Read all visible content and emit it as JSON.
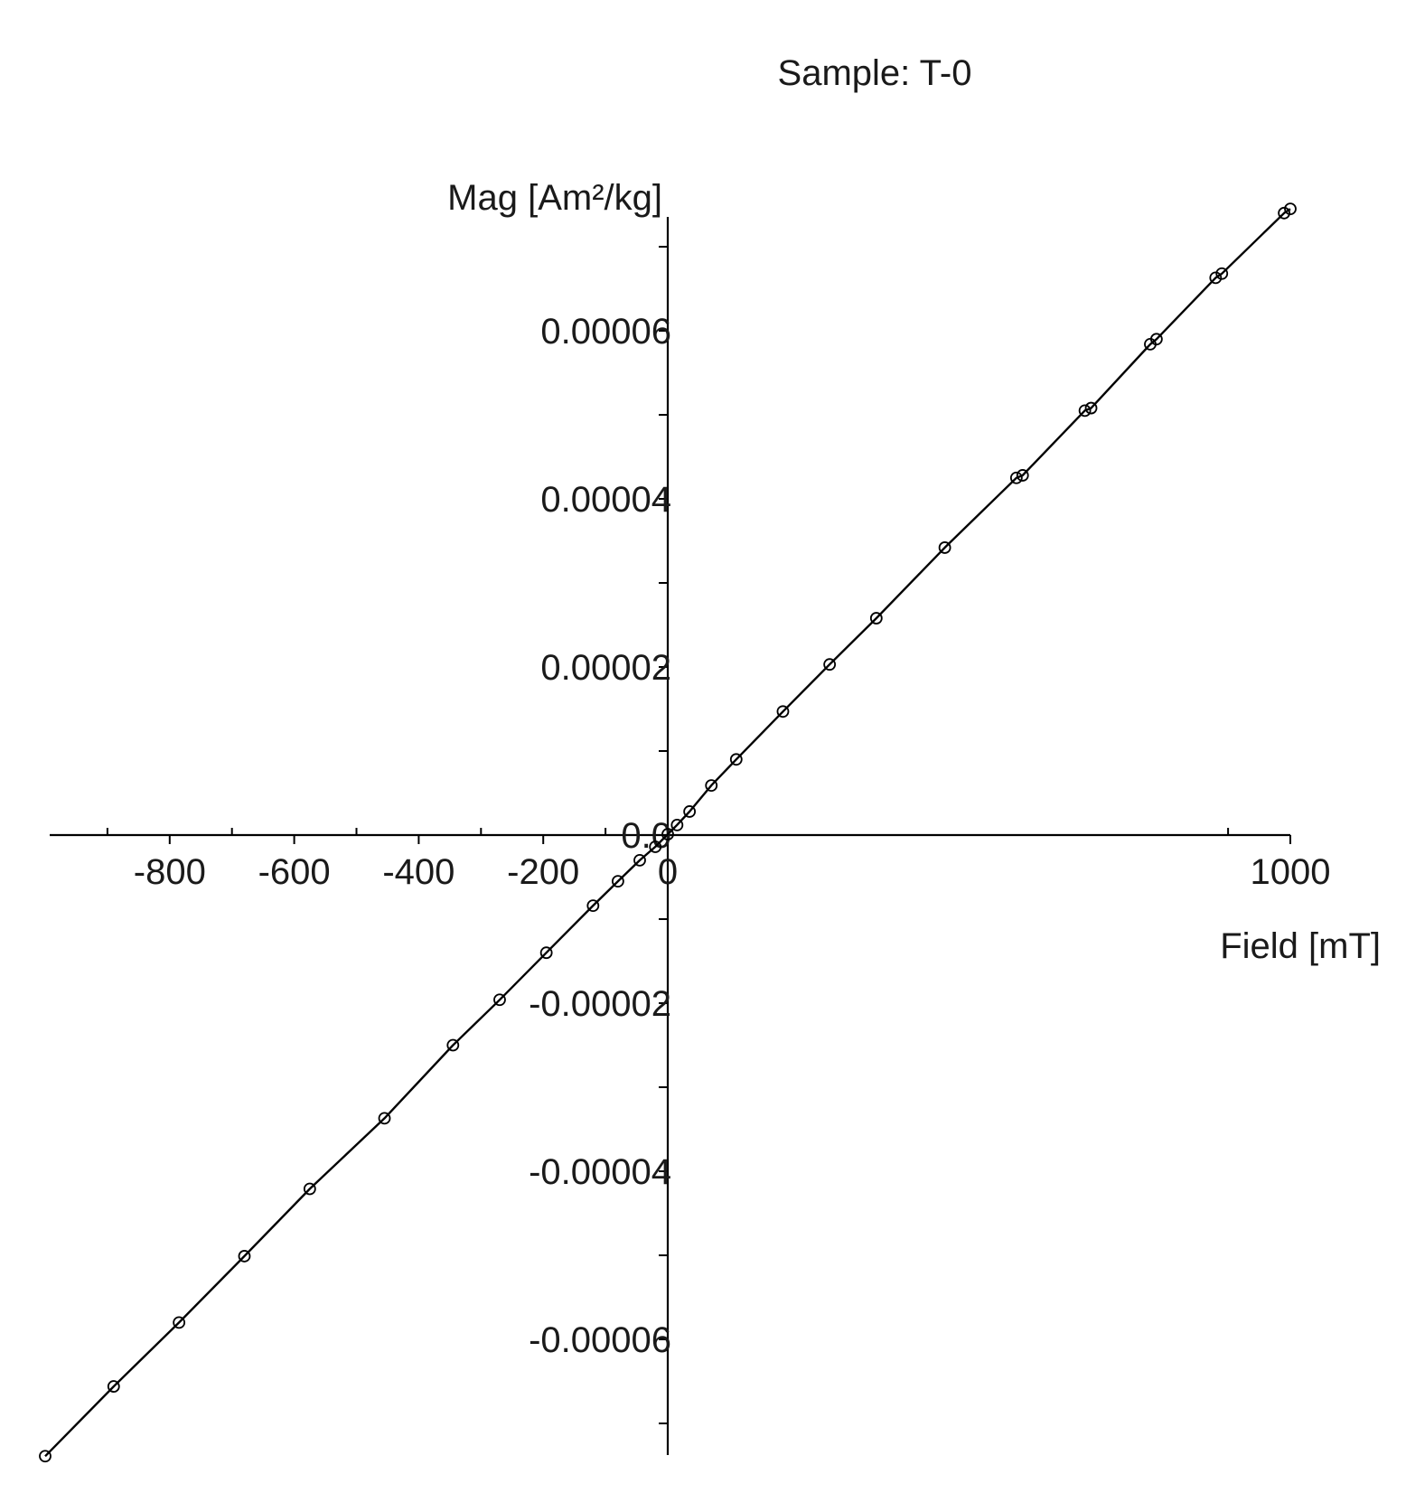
{
  "chart_data": {
    "type": "scatter",
    "title": "Sample: T-0",
    "xlabel": "Field [mT]",
    "ylabel": "Mag [Am²/kg]",
    "xlim": [
      -1000,
      1000
    ],
    "ylim": [
      -7.2e-05,
      7.4e-05
    ],
    "x_ticks": [
      {
        "value": -800,
        "label": "-800"
      },
      {
        "value": -600,
        "label": "-600"
      },
      {
        "value": -400,
        "label": "-400"
      },
      {
        "value": -200,
        "label": "-200"
      },
      {
        "value": 0,
        "label": "0"
      },
      {
        "value": 1000,
        "label": "1000"
      }
    ],
    "x_minor_ticks": [
      -900,
      -700,
      -500,
      -300,
      -100,
      900
    ],
    "y_ticks": [
      {
        "value": 6e-05,
        "label": "0.00006"
      },
      {
        "value": 4e-05,
        "label": "0.00004"
      },
      {
        "value": 2e-05,
        "label": "0.00002"
      },
      {
        "value": 0,
        "label": "0.0"
      },
      {
        "value": -2e-05,
        "label": "-0.00002"
      },
      {
        "value": -4e-05,
        "label": "-0.00004"
      },
      {
        "value": -6e-05,
        "label": "-0.00006"
      }
    ],
    "y_minor_ticks": [
      7e-05,
      5e-05,
      3e-05,
      1e-05,
      -1e-05,
      -3e-05,
      -5e-05,
      -7e-05
    ],
    "grid": false,
    "line_color": "#000000",
    "series": [
      {
        "points": [
          {
            "x": -1000,
            "y": -7.39e-05
          },
          {
            "x": -890,
            "y": -6.56e-05
          },
          {
            "x": -785,
            "y": -5.8e-05
          },
          {
            "x": -680,
            "y": -5.01e-05
          },
          {
            "x": -575,
            "y": -4.21e-05
          },
          {
            "x": -455,
            "y": -3.37e-05
          },
          {
            "x": -345,
            "y": -2.5e-05
          },
          {
            "x": -270,
            "y": -1.96e-05
          },
          {
            "x": -195,
            "y": -1.4e-05
          },
          {
            "x": -120,
            "y": -8.4e-06
          },
          {
            "x": -80,
            "y": -5.5e-06
          },
          {
            "x": -45,
            "y": -3e-06
          },
          {
            "x": -20,
            "y": -1.4e-06
          },
          {
            "x": 0,
            "y": 1e-07
          },
          {
            "x": 15,
            "y": 1.2e-06
          },
          {
            "x": 35,
            "y": 2.8e-06
          },
          {
            "x": 70,
            "y": 5.9e-06
          },
          {
            "x": 110,
            "y": 9e-06
          },
          {
            "x": 185,
            "y": 1.47e-05
          },
          {
            "x": 260,
            "y": 2.03e-05
          },
          {
            "x": 335,
            "y": 2.58e-05
          },
          {
            "x": 445,
            "y": 3.42e-05
          },
          {
            "x": 560,
            "y": 4.25e-05
          },
          {
            "x": 570,
            "y": 4.28e-05
          },
          {
            "x": 670,
            "y": 5.05e-05
          },
          {
            "x": 680,
            "y": 5.08e-05
          },
          {
            "x": 775,
            "y": 5.84e-05
          },
          {
            "x": 785,
            "y": 5.9e-05
          },
          {
            "x": 880,
            "y": 6.63e-05
          },
          {
            "x": 890,
            "y": 6.68e-05
          },
          {
            "x": 990,
            "y": 7.4e-05
          },
          {
            "x": 1000,
            "y": 7.45e-05
          }
        ]
      }
    ]
  }
}
